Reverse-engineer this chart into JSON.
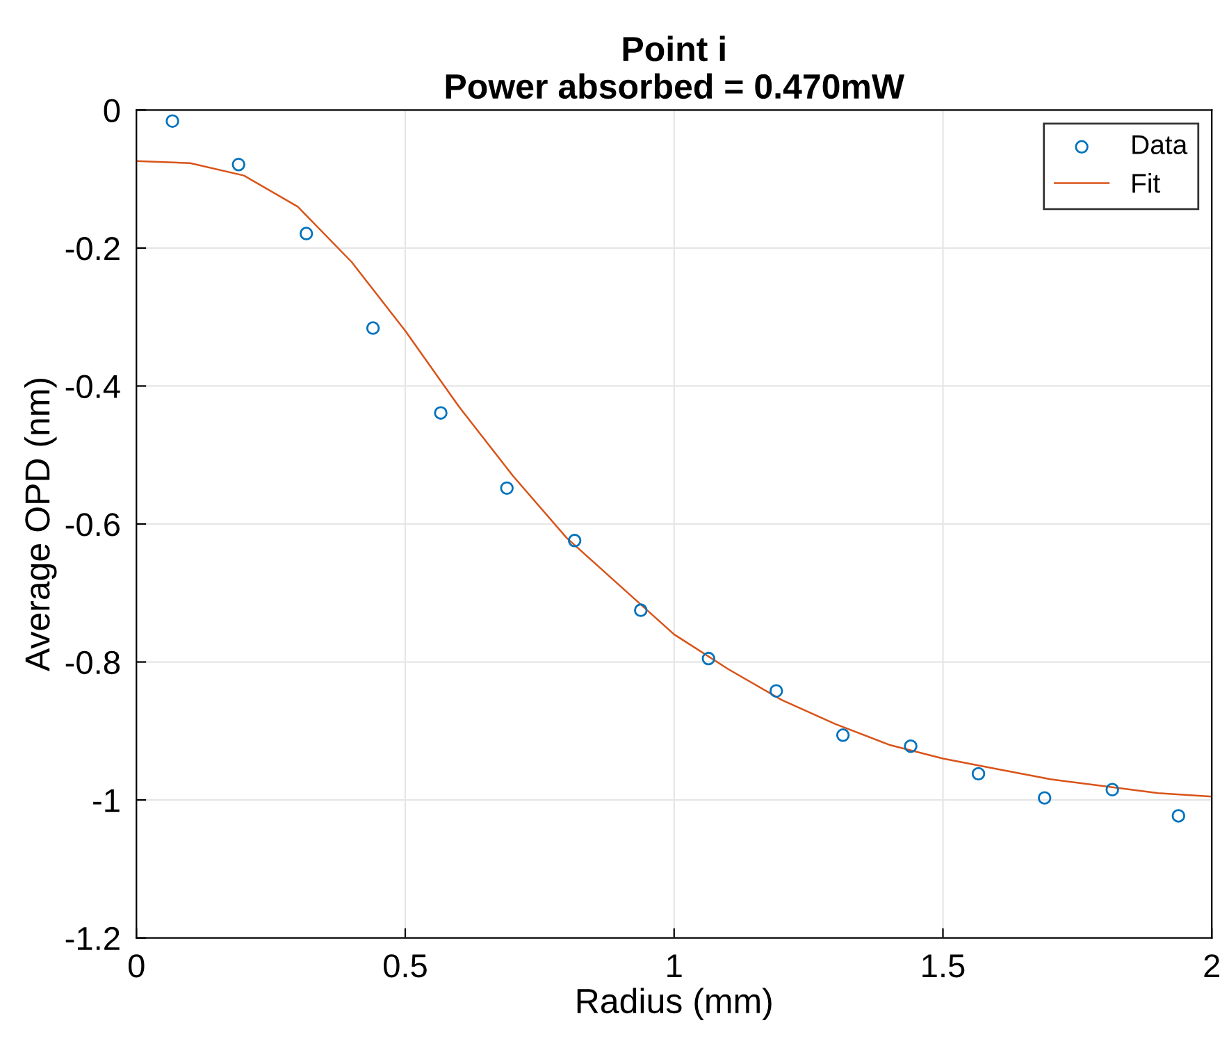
{
  "chart_data": {
    "type": "scatter",
    "title": "Point i\nPower absorbed = 0.470mW",
    "xlabel": "Radius (mm)",
    "ylabel": "Average OPD (nm)",
    "series": [
      {
        "name": "Data",
        "color": "#0072bd",
        "marker": "circle",
        "x": [
          0.067,
          0.19,
          0.316,
          0.44,
          0.566,
          0.689,
          0.815,
          0.938,
          1.064,
          1.19,
          1.314,
          1.44,
          1.566,
          1.689,
          1.815,
          1.938
        ],
        "values": [
          -0.016,
          -0.079,
          -0.179,
          -0.316,
          -0.439,
          -0.548,
          -0.624,
          -0.725,
          -0.795,
          -0.842,
          -0.906,
          -0.922,
          -0.962,
          -0.997,
          -0.985,
          -1.023
        ]
      },
      {
        "name": "Fit",
        "type": "line",
        "color": "#d95319",
        "x": [
          0,
          0.1,
          0.2,
          0.3,
          0.4,
          0.5,
          0.6,
          0.7,
          0.8,
          0.9,
          1.0,
          1.1,
          1.2,
          1.3,
          1.4,
          1.5,
          1.6,
          1.7,
          1.8,
          1.9,
          2.0
        ],
        "values": [
          -0.074,
          -0.077,
          -0.095,
          -0.14,
          -0.22,
          -0.32,
          -0.43,
          -0.53,
          -0.62,
          -0.69,
          -0.76,
          -0.81,
          -0.855,
          -0.89,
          -0.92,
          -0.94,
          -0.955,
          -0.97,
          -0.98,
          -0.99,
          -0.995
        ]
      }
    ],
    "xlim": [
      0,
      2
    ],
    "xticks": [
      0,
      0.5,
      1,
      1.5,
      2
    ],
    "ylim": [
      -1.2,
      0
    ],
    "yticks": [
      -1.2,
      -1,
      -0.8,
      -0.6,
      -0.4,
      -0.2,
      0
    ],
    "grid": true,
    "legend": "top right"
  }
}
